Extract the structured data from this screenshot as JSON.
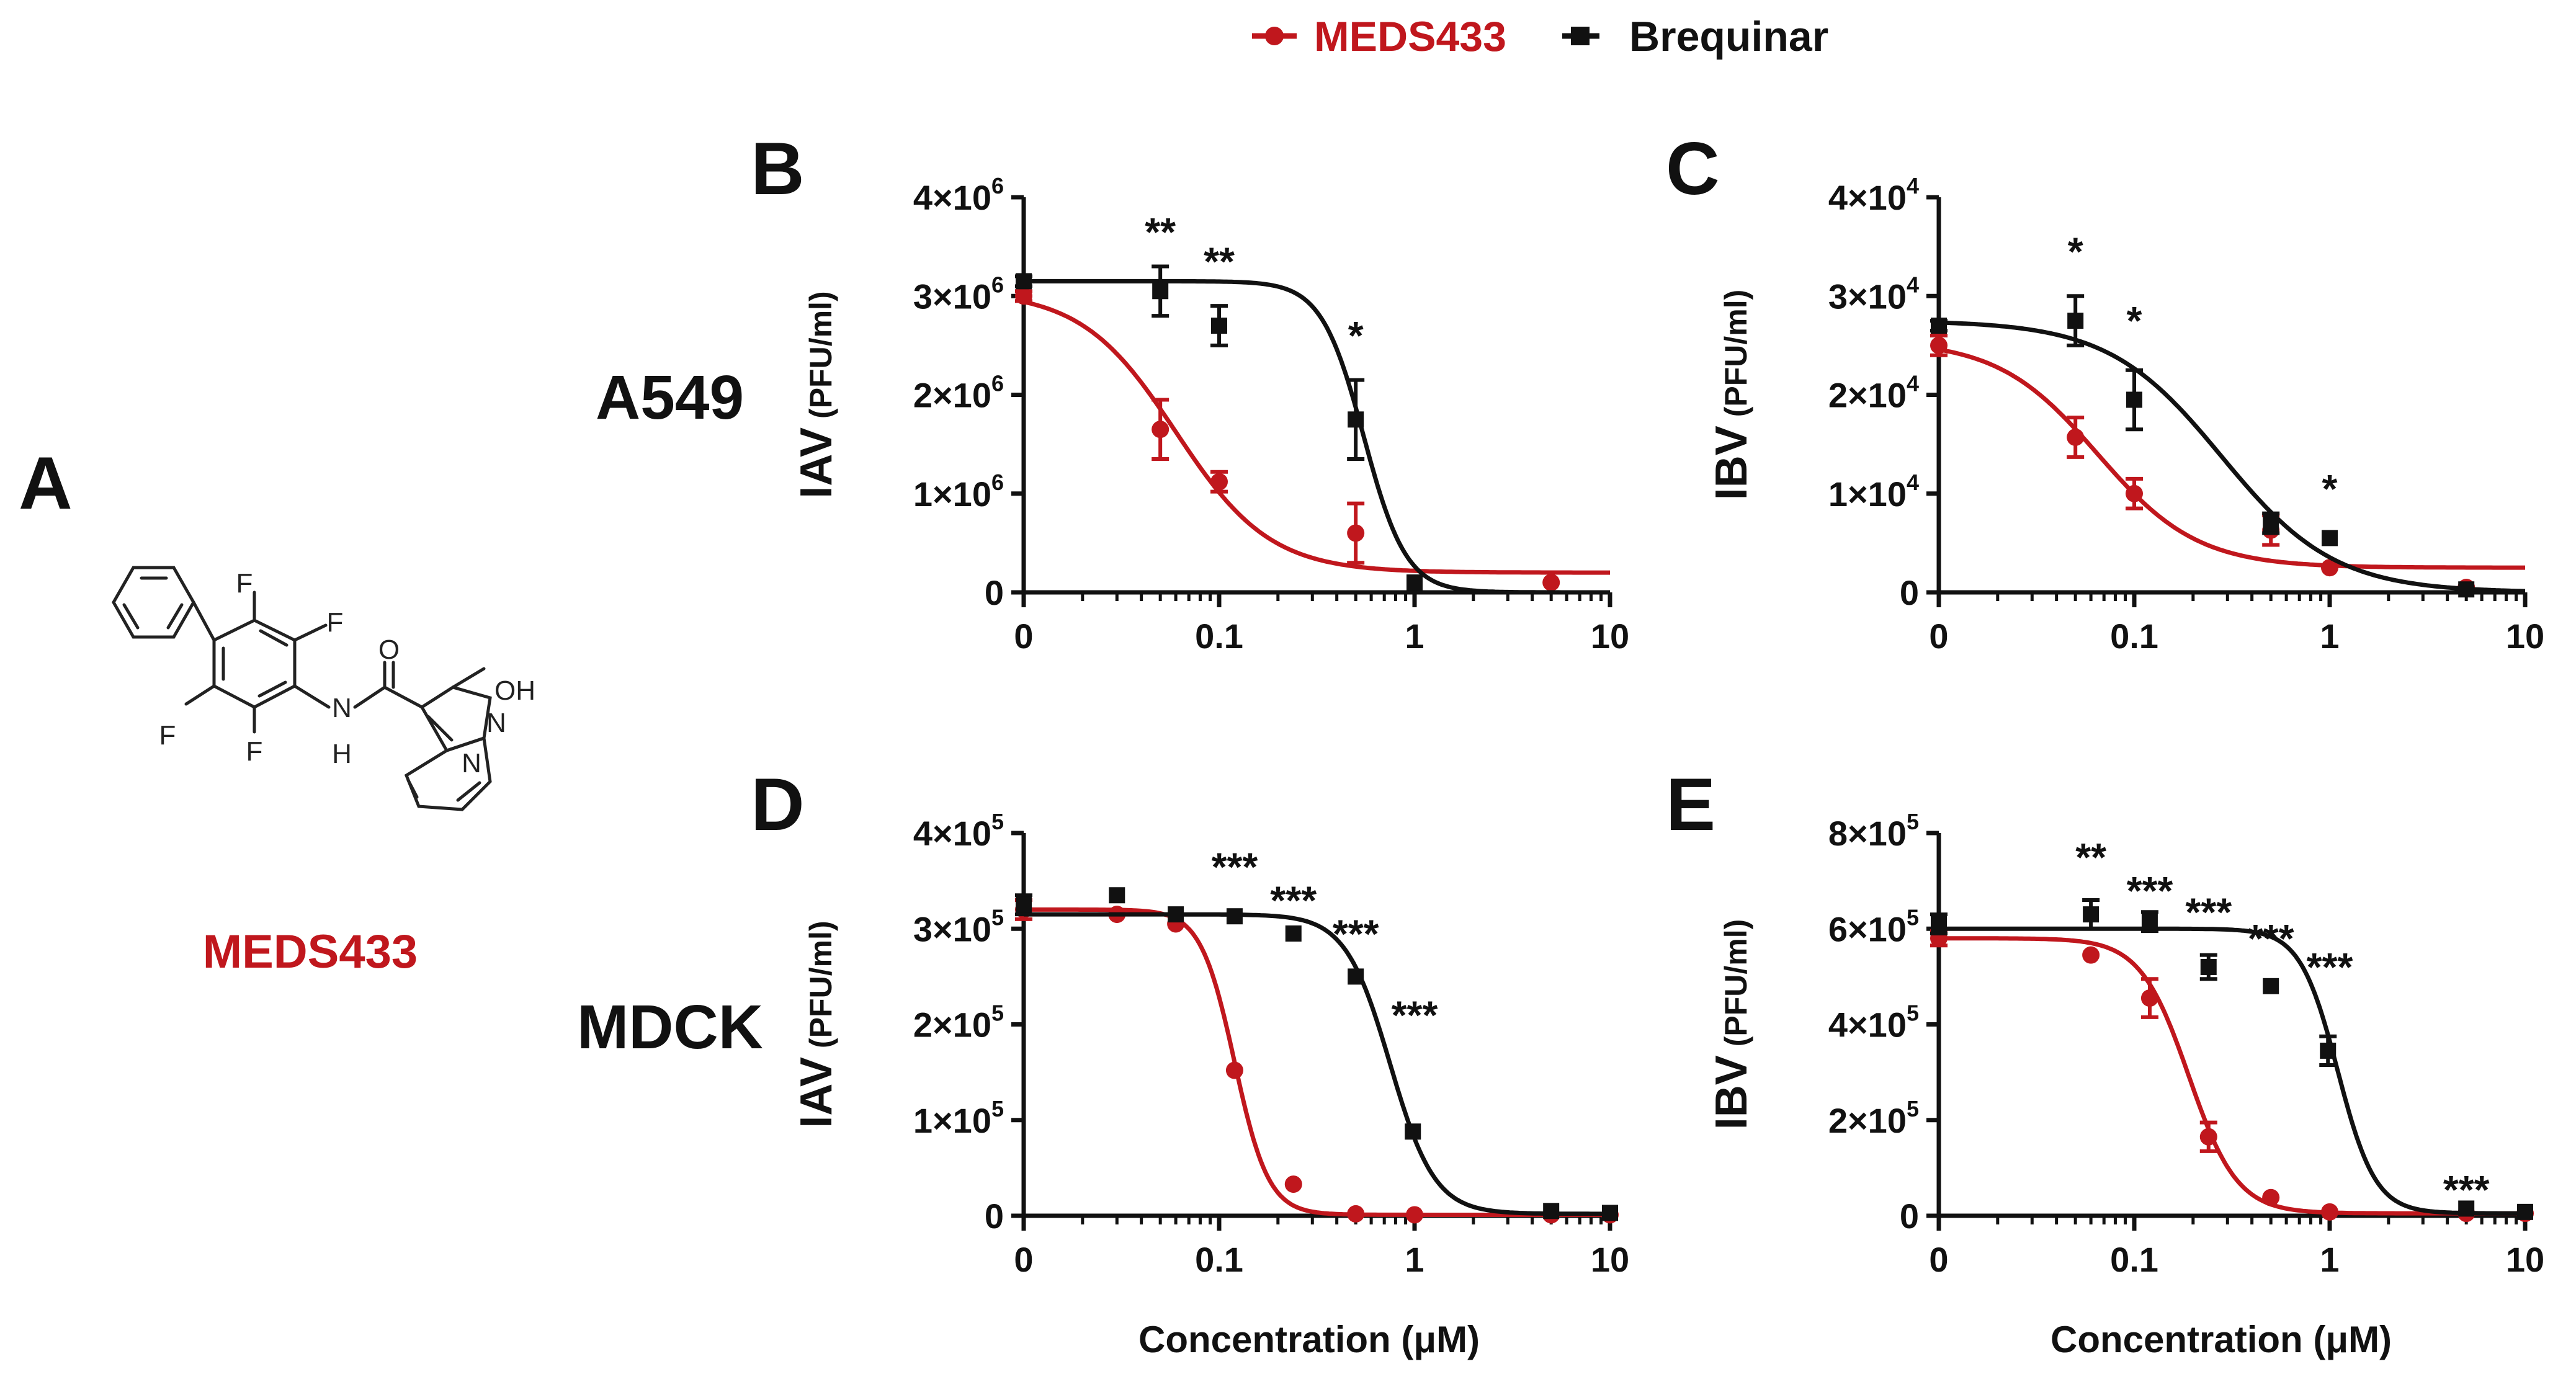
{
  "legend": {
    "items": [
      {
        "name": "MEDS433",
        "color": "#c0171d",
        "marker": "circle"
      },
      {
        "name": "Brequinar",
        "color": "#111111",
        "marker": "square"
      }
    ]
  },
  "panel_a": {
    "letter": "A",
    "compound_name": "MEDS433",
    "atoms": {
      "f1": "F",
      "f2": "F",
      "f3": "F",
      "f4": "F",
      "n_amide": "N",
      "h_amide": "H",
      "o_carbonyl": "O",
      "oh": "OH",
      "n_ring_1": "N",
      "n_ring_2": "N"
    }
  },
  "row_labels": {
    "top": "A549",
    "bottom": "MDCK"
  },
  "x_axis_label": "Concentration (μM)",
  "chart_data": [
    {
      "panel": "B",
      "type": "line",
      "cell_line": "A549",
      "ylabel_main": "IAV",
      "ylabel_unit": "(PFU/ml)",
      "xscale": "log",
      "xlim": [
        0.01,
        10
      ],
      "xticks": [
        0.01,
        0.1,
        1,
        10
      ],
      "xtick_labels": [
        "0",
        "0.1",
        "1",
        "10"
      ],
      "ylim": [
        0,
        4000000
      ],
      "yticks": [
        0,
        1000000,
        2000000,
        3000000,
        4000000
      ],
      "ytick_labels": [
        {
          "base": "0",
          "exp": ""
        },
        {
          "base": "1×10",
          "exp": "6"
        },
        {
          "base": "2×10",
          "exp": "6"
        },
        {
          "base": "3×10",
          "exp": "6"
        },
        {
          "base": "4×10",
          "exp": "6"
        }
      ],
      "series": [
        {
          "name": "MEDS433",
          "color": "#c0171d",
          "marker": "circle",
          "points": [
            {
              "x": 0.01,
              "y": 3000000,
              "err": 50000
            },
            {
              "x": 0.05,
              "y": 1650000,
              "err": 300000
            },
            {
              "x": 0.1,
              "y": 1120000,
              "err": 100000
            },
            {
              "x": 0.5,
              "y": 600000,
              "err": 300000
            },
            {
              "x": 5,
              "y": 100000,
              "err": 0
            }
          ],
          "fit": {
            "top": 3050000,
            "bottom": 200000,
            "ec50": 0.06,
            "hill": 1.8
          }
        },
        {
          "name": "Brequinar",
          "color": "#111111",
          "marker": "square",
          "points": [
            {
              "x": 0.01,
              "y": 3150000,
              "err": 50000
            },
            {
              "x": 0.05,
              "y": 3050000,
              "err": 250000
            },
            {
              "x": 0.1,
              "y": 2700000,
              "err": 200000
            },
            {
              "x": 0.5,
              "y": 1750000,
              "err": 400000
            },
            {
              "x": 1,
              "y": 100000,
              "err": 0
            }
          ],
          "fit": {
            "top": 3150000,
            "bottom": 0,
            "ec50": 0.55,
            "hill": 4.0
          }
        }
      ],
      "annotations": [
        {
          "text": "**",
          "x": 0.05,
          "y": 3700000
        },
        {
          "text": "**",
          "x": 0.1,
          "y": 3400000
        },
        {
          "text": "*",
          "x": 0.5,
          "y": 2650000
        }
      ]
    },
    {
      "panel": "C",
      "type": "line",
      "cell_line": "A549",
      "ylabel_main": "IBV",
      "ylabel_unit": "(PFU/ml)",
      "xscale": "log",
      "xlim": [
        0.01,
        10
      ],
      "xticks": [
        0.01,
        0.1,
        1,
        10
      ],
      "xtick_labels": [
        "0",
        "0.1",
        "1",
        "10"
      ],
      "ylim": [
        0,
        40000
      ],
      "yticks": [
        0,
        10000,
        20000,
        30000,
        40000
      ],
      "ytick_labels": [
        {
          "base": "0",
          "exp": ""
        },
        {
          "base": "1×10",
          "exp": "4"
        },
        {
          "base": "2×10",
          "exp": "4"
        },
        {
          "base": "3×10",
          "exp": "4"
        },
        {
          "base": "4×10",
          "exp": "4"
        }
      ],
      "series": [
        {
          "name": "MEDS433",
          "color": "#c0171d",
          "marker": "circle",
          "points": [
            {
              "x": 0.01,
              "y": 25000,
              "err": 1000
            },
            {
              "x": 0.05,
              "y": 15700,
              "err": 2000
            },
            {
              "x": 0.1,
              "y": 10000,
              "err": 1500
            },
            {
              "x": 0.5,
              "y": 6300,
              "err": 1500
            },
            {
              "x": 1,
              "y": 2500,
              "err": 0
            },
            {
              "x": 5,
              "y": 500,
              "err": 0
            }
          ],
          "fit": {
            "top": 25500,
            "bottom": 2500,
            "ec50": 0.065,
            "hill": 1.7
          }
        },
        {
          "name": "Brequinar",
          "color": "#111111",
          "marker": "square",
          "points": [
            {
              "x": 0.01,
              "y": 27000,
              "err": 500
            },
            {
              "x": 0.05,
              "y": 27500,
              "err": 2500
            },
            {
              "x": 0.1,
              "y": 19500,
              "err": 3000
            },
            {
              "x": 0.5,
              "y": 7000,
              "err": 1000
            },
            {
              "x": 1,
              "y": 5500,
              "err": 0
            },
            {
              "x": 5,
              "y": 300,
              "err": 0
            }
          ],
          "fit": {
            "top": 27500,
            "bottom": 0,
            "ec50": 0.28,
            "hill": 1.5
          }
        }
      ],
      "annotations": [
        {
          "text": "*",
          "x": 0.05,
          "y": 35000
        },
        {
          "text": "*",
          "x": 0.1,
          "y": 28000
        },
        {
          "text": "*",
          "x": 1,
          "y": 11000
        }
      ]
    },
    {
      "panel": "D",
      "type": "line",
      "cell_line": "MDCK",
      "ylabel_main": "IAV",
      "ylabel_unit": "(PFU/ml)",
      "xscale": "log",
      "xlim": [
        0.01,
        10
      ],
      "xticks": [
        0.01,
        0.1,
        1,
        10
      ],
      "xtick_labels": [
        "0",
        "0.1",
        "1",
        "10"
      ],
      "ylim": [
        0,
        400000
      ],
      "yticks": [
        0,
        100000,
        200000,
        300000,
        400000
      ],
      "ytick_labels": [
        {
          "base": "0",
          "exp": ""
        },
        {
          "base": "1×10",
          "exp": "5"
        },
        {
          "base": "2×10",
          "exp": "5"
        },
        {
          "base": "3×10",
          "exp": "5"
        },
        {
          "base": "4×10",
          "exp": "5"
        }
      ],
      "series": [
        {
          "name": "MEDS433",
          "color": "#c0171d",
          "marker": "circle",
          "points": [
            {
              "x": 0.01,
              "y": 320000,
              "err": 10000
            },
            {
              "x": 0.03,
              "y": 315000,
              "err": 0
            },
            {
              "x": 0.06,
              "y": 305000,
              "err": 0
            },
            {
              "x": 0.12,
              "y": 152000,
              "err": 0
            },
            {
              "x": 0.24,
              "y": 33000,
              "err": 0
            },
            {
              "x": 0.5,
              "y": 2000,
              "err": 0
            },
            {
              "x": 1,
              "y": 1000,
              "err": 0
            },
            {
              "x": 5,
              "y": 1000,
              "err": 0
            },
            {
              "x": 10,
              "y": 1000,
              "err": 0
            }
          ],
          "fit": {
            "top": 320000,
            "bottom": 1000,
            "ec50": 0.12,
            "hill": 5.0
          }
        },
        {
          "name": "Brequinar",
          "color": "#111111",
          "marker": "square",
          "points": [
            {
              "x": 0.01,
              "y": 325000,
              "err": 10000
            },
            {
              "x": 0.03,
              "y": 335000,
              "err": 0
            },
            {
              "x": 0.06,
              "y": 315000,
              "err": 0
            },
            {
              "x": 0.12,
              "y": 313000,
              "err": 0
            },
            {
              "x": 0.24,
              "y": 295000,
              "err": 0
            },
            {
              "x": 0.5,
              "y": 250000,
              "err": 0
            },
            {
              "x": 0.98,
              "y": 88000,
              "err": 0
            },
            {
              "x": 5,
              "y": 5000,
              "err": 0
            },
            {
              "x": 10,
              "y": 3000,
              "err": 0
            }
          ],
          "fit": {
            "top": 315000,
            "bottom": 2000,
            "ec50": 0.75,
            "hill": 3.8
          }
        }
      ],
      "annotations": [
        {
          "text": "***",
          "x": 0.12,
          "y": 370000
        },
        {
          "text": "***",
          "x": 0.24,
          "y": 335000
        },
        {
          "text": "***",
          "x": 0.5,
          "y": 300000
        },
        {
          "text": "***",
          "x": 1,
          "y": 215000
        }
      ]
    },
    {
      "panel": "E",
      "type": "line",
      "cell_line": "MDCK",
      "ylabel_main": "IBV",
      "ylabel_unit": "(PFU/ml)",
      "xscale": "log",
      "xlim": [
        0.01,
        10
      ],
      "xticks": [
        0.01,
        0.1,
        1,
        10
      ],
      "xtick_labels": [
        "0",
        "0.1",
        "1",
        "10"
      ],
      "ylim": [
        0,
        800000
      ],
      "yticks": [
        0,
        200000,
        400000,
        600000,
        800000
      ],
      "ytick_labels": [
        {
          "base": "0",
          "exp": ""
        },
        {
          "base": "2×10",
          "exp": "5"
        },
        {
          "base": "4×10",
          "exp": "5"
        },
        {
          "base": "6×10",
          "exp": "5"
        },
        {
          "base": "8×10",
          "exp": "5"
        }
      ],
      "series": [
        {
          "name": "MEDS433",
          "color": "#c0171d",
          "marker": "circle",
          "points": [
            {
              "x": 0.01,
              "y": 580000,
              "err": 15000
            },
            {
              "x": 0.06,
              "y": 545000,
              "err": 0
            },
            {
              "x": 0.12,
              "y": 455000,
              "err": 40000
            },
            {
              "x": 0.24,
              "y": 165000,
              "err": 30000
            },
            {
              "x": 0.5,
              "y": 38000,
              "err": 0
            },
            {
              "x": 1,
              "y": 8000,
              "err": 0
            },
            {
              "x": 5,
              "y": 5000,
              "err": 0
            },
            {
              "x": 10,
              "y": 5000,
              "err": 0
            }
          ],
          "fit": {
            "top": 580000,
            "bottom": 5000,
            "ec50": 0.19,
            "hill": 3.5
          }
        },
        {
          "name": "Brequinar",
          "color": "#111111",
          "marker": "square",
          "points": [
            {
              "x": 0.01,
              "y": 610000,
              "err": 20000
            },
            {
              "x": 0.06,
              "y": 630000,
              "err": 30000
            },
            {
              "x": 0.12,
              "y": 615000,
              "err": 20000
            },
            {
              "x": 0.24,
              "y": 520000,
              "err": 25000
            },
            {
              "x": 0.5,
              "y": 480000,
              "err": 0
            },
            {
              "x": 0.98,
              "y": 345000,
              "err": 30000
            },
            {
              "x": 5,
              "y": 15000,
              "err": 0
            },
            {
              "x": 10,
              "y": 8000,
              "err": 0
            }
          ],
          "fit": {
            "top": 600000,
            "bottom": 5000,
            "ec50": 1.1,
            "hill": 4.5
          }
        }
      ],
      "annotations": [
        {
          "text": "**",
          "x": 0.06,
          "y": 760000
        },
        {
          "text": "***",
          "x": 0.12,
          "y": 690000
        },
        {
          "text": "***",
          "x": 0.24,
          "y": 645000
        },
        {
          "text": "***",
          "x": 0.5,
          "y": 590000
        },
        {
          "text": "***",
          "x": 1,
          "y": 530000
        },
        {
          "text": "***",
          "x": 5,
          "y": 65000
        }
      ]
    }
  ]
}
